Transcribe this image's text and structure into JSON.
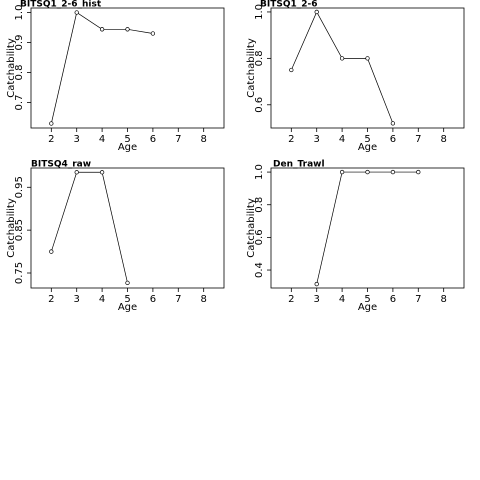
{
  "chart_data": [
    {
      "type": "line",
      "title": "BITSQ1_2-6_hist",
      "x_label": "Age",
      "y_label": "Catchability",
      "x": [
        2,
        3,
        4,
        5,
        6
      ],
      "values": [
        0.63,
        1.0,
        0.944,
        0.944,
        0.93
      ],
      "color": "#000000",
      "xlim": [
        1.2,
        8.8
      ],
      "ylim": [
        0.615,
        1.015
      ],
      "xticks": [
        2,
        3,
        4,
        5,
        6,
        7,
        8
      ],
      "yticks": [
        0.7,
        0.8,
        0.9,
        {
          "value": 1,
          "label": "1.0"
        }
      ]
    },
    {
      "type": "line",
      "title": "BITSQ1_2-6",
      "x_label": "Age",
      "y_label": "Catchability",
      "x": [
        2,
        3,
        4,
        5,
        6
      ],
      "values": [
        0.75,
        1.0,
        0.8,
        0.8,
        0.52
      ],
      "color": "#000000",
      "xlim": [
        1.2,
        8.8
      ],
      "ylim": [
        0.5,
        1.017
      ],
      "xticks": [
        2,
        3,
        4,
        5,
        6,
        7,
        8
      ],
      "yticks": [
        0.6,
        0.8,
        {
          "value": 1,
          "label": "1.0"
        }
      ]
    },
    {
      "type": "line",
      "title": "BITSQ4_raw",
      "x_label": "Age",
      "y_label": "Catchability",
      "x": [
        2,
        3,
        4,
        5
      ],
      "values": [
        0.8,
        0.985,
        0.985,
        0.727
      ],
      "color": "#000000",
      "xlim": [
        1.2,
        8.8
      ],
      "ylim": [
        0.715,
        0.995
      ],
      "xticks": [
        2,
        3,
        4,
        5,
        6,
        7,
        8
      ],
      "yticks": [
        0.75,
        0.85,
        0.95
      ]
    },
    {
      "type": "line",
      "title": "Den_Trawl",
      "x_label": "Age",
      "y_label": "Catchability",
      "x": [
        3,
        4,
        5,
        6,
        7
      ],
      "values": [
        0.314,
        1.0,
        1.0,
        1.0,
        1.0
      ],
      "color": "#000000",
      "xlim": [
        1.2,
        8.8
      ],
      "ylim": [
        0.29,
        1.025
      ],
      "xticks": [
        2,
        3,
        4,
        5,
        6,
        7,
        8
      ],
      "yticks": [
        0.4,
        0.6,
        0.8,
        {
          "value": 1,
          "label": "1.0"
        }
      ]
    }
  ]
}
